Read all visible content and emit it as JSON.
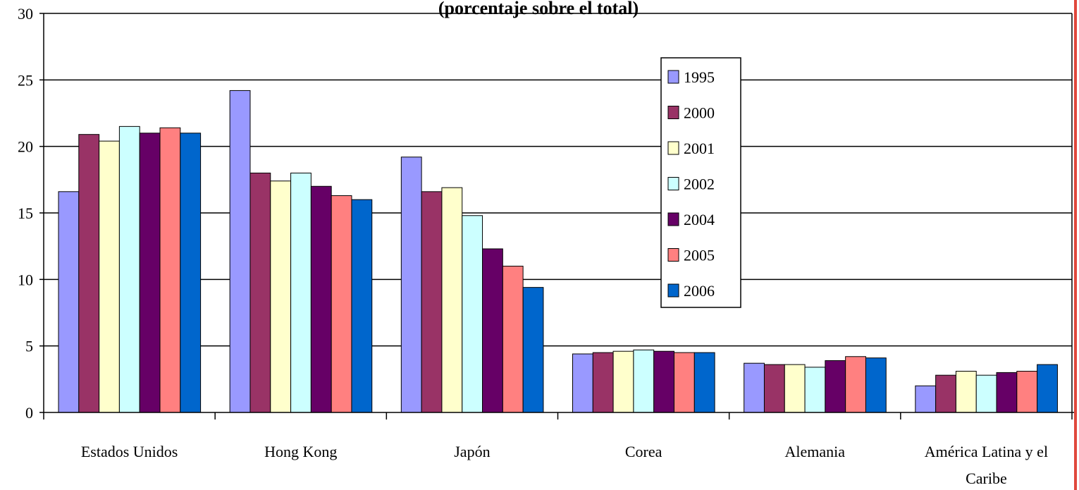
{
  "chart_data": {
    "type": "bar",
    "title": "(porcentaje sobre el total)",
    "xlabel": "",
    "ylabel": "",
    "ylim": [
      0,
      30
    ],
    "yticks": [
      0,
      5,
      10,
      15,
      20,
      25,
      30
    ],
    "grid": true,
    "legend_position": "center-right",
    "categories": [
      [
        "Estados Unidos"
      ],
      [
        "Hong Kong"
      ],
      [
        "Japón"
      ],
      [
        "Corea"
      ],
      [
        "Alemania"
      ],
      [
        "América Latina y el",
        "Caribe"
      ]
    ],
    "series": [
      {
        "name": "1995",
        "color": "#9999ff",
        "values": [
          16.6,
          24.2,
          19.2,
          4.4,
          3.7,
          2.0
        ]
      },
      {
        "name": "2000",
        "color": "#993366",
        "values": [
          20.9,
          18.0,
          16.6,
          4.5,
          3.6,
          2.8
        ]
      },
      {
        "name": "2001",
        "color": "#ffffcc",
        "values": [
          20.4,
          17.4,
          16.9,
          4.6,
          3.6,
          3.1
        ]
      },
      {
        "name": "2002",
        "color": "#ccffff",
        "values": [
          21.5,
          18.0,
          14.8,
          4.7,
          3.4,
          2.8
        ]
      },
      {
        "name": "2004",
        "color": "#660066",
        "values": [
          21.0,
          17.0,
          12.3,
          4.6,
          3.9,
          3.0
        ]
      },
      {
        "name": "2005",
        "color": "#ff8080",
        "values": [
          21.4,
          16.3,
          11.0,
          4.5,
          4.2,
          3.1
        ]
      },
      {
        "name": "2006",
        "color": "#0066cc",
        "values": [
          21.0,
          16.0,
          9.4,
          4.5,
          4.1,
          3.6
        ]
      }
    ]
  }
}
